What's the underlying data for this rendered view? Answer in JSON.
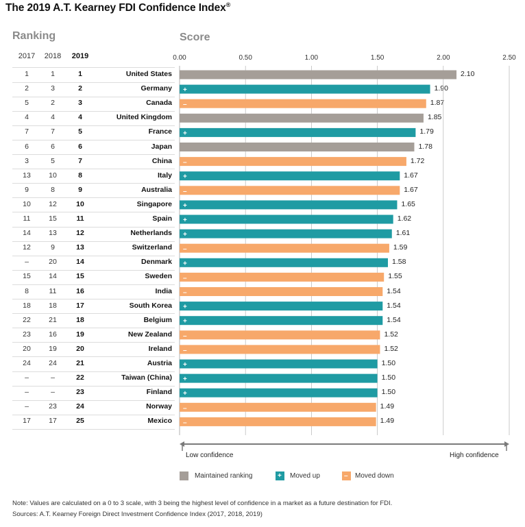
{
  "title": "The 2019 A.T. Kearney FDI Confidence Index",
  "title_mark": "®",
  "ranking_header": "Ranking",
  "score_header": "Score",
  "years": [
    "2017",
    "2018",
    "2019"
  ],
  "axis_ticks": [
    "0.00",
    "0.50",
    "1.00",
    "1.50",
    "2.00",
    "2.50"
  ],
  "low_label": "Low confidence",
  "high_label": "High confidence",
  "colors": {
    "maintained": "#a59e98",
    "up": "#1f9ba3",
    "down": "#f7a86a"
  },
  "legend": [
    {
      "key": "maintained",
      "label": "Maintained ranking",
      "symbol": ""
    },
    {
      "key": "up",
      "label": "Moved up",
      "symbol": "+"
    },
    {
      "key": "down",
      "label": "Moved down",
      "symbol": "–"
    }
  ],
  "rows": [
    {
      "r2017": "1",
      "r2018": "1",
      "r2019": "1",
      "country": "United States",
      "status": "maintained",
      "symbol": "",
      "label": "2.10"
    },
    {
      "r2017": "2",
      "r2018": "3",
      "r2019": "2",
      "country": "Germany",
      "status": "up",
      "symbol": "+",
      "label": "1.90"
    },
    {
      "r2017": "5",
      "r2018": "2",
      "r2019": "3",
      "country": "Canada",
      "status": "down",
      "symbol": "–",
      "label": "1.87"
    },
    {
      "r2017": "4",
      "r2018": "4",
      "r2019": "4",
      "country": "United Kingdom",
      "status": "maintained",
      "symbol": "",
      "label": "1.85"
    },
    {
      "r2017": "7",
      "r2018": "7",
      "r2019": "5",
      "country": "France",
      "status": "up",
      "symbol": "+",
      "label": "1.79"
    },
    {
      "r2017": "6",
      "r2018": "6",
      "r2019": "6",
      "country": "Japan",
      "status": "maintained",
      "symbol": "",
      "label": "1.78"
    },
    {
      "r2017": "3",
      "r2018": "5",
      "r2019": "7",
      "country": "China",
      "status": "down",
      "symbol": "–",
      "label": "1.72"
    },
    {
      "r2017": "13",
      "r2018": "10",
      "r2019": "8",
      "country": "Italy",
      "status": "up",
      "symbol": "+",
      "label": "1.67"
    },
    {
      "r2017": "9",
      "r2018": "8",
      "r2019": "9",
      "country": "Australia",
      "status": "down",
      "symbol": "–",
      "label": "1.67"
    },
    {
      "r2017": "10",
      "r2018": "12",
      "r2019": "10",
      "country": "Singapore",
      "status": "up",
      "symbol": "+",
      "label": "1.65"
    },
    {
      "r2017": "11",
      "r2018": "15",
      "r2019": "11",
      "country": "Spain",
      "status": "up",
      "symbol": "+",
      "label": "1.62"
    },
    {
      "r2017": "14",
      "r2018": "13",
      "r2019": "12",
      "country": "Netherlands",
      "status": "up",
      "symbol": "+",
      "label": "1.61"
    },
    {
      "r2017": "12",
      "r2018": "9",
      "r2019": "13",
      "country": "Switzerland",
      "status": "down",
      "symbol": "–",
      "label": "1.59"
    },
    {
      "r2017": "–",
      "r2018": "20",
      "r2019": "14",
      "country": "Denmark",
      "status": "up",
      "symbol": "+",
      "label": "1.58"
    },
    {
      "r2017": "15",
      "r2018": "14",
      "r2019": "15",
      "country": "Sweden",
      "status": "down",
      "symbol": "–",
      "label": "1.55"
    },
    {
      "r2017": "8",
      "r2018": "11",
      "r2019": "16",
      "country": "India",
      "status": "down",
      "symbol": "–",
      "label": "1.54"
    },
    {
      "r2017": "18",
      "r2018": "18",
      "r2019": "17",
      "country": "South Korea",
      "status": "up",
      "symbol": "+",
      "label": "1.54"
    },
    {
      "r2017": "22",
      "r2018": "21",
      "r2019": "18",
      "country": "Belgium",
      "status": "up",
      "symbol": "+",
      "label": "1.54"
    },
    {
      "r2017": "23",
      "r2018": "16",
      "r2019": "19",
      "country": "New Zealand",
      "status": "down",
      "symbol": "–",
      "label": "1.52"
    },
    {
      "r2017": "20",
      "r2018": "19",
      "r2019": "20",
      "country": "Ireland",
      "status": "down",
      "symbol": "–",
      "label": "1.52"
    },
    {
      "r2017": "24",
      "r2018": "24",
      "r2019": "21",
      "country": "Austria",
      "status": "up",
      "symbol": "+",
      "label": "1.50"
    },
    {
      "r2017": "–",
      "r2018": "–",
      "r2019": "22",
      "country": "Taiwan (China)",
      "status": "up",
      "symbol": "+",
      "label": "1.50"
    },
    {
      "r2017": "–",
      "r2018": "–",
      "r2019": "23",
      "country": "Finland",
      "status": "up",
      "symbol": "+",
      "label": "1.50"
    },
    {
      "r2017": "–",
      "r2018": "23",
      "r2019": "24",
      "country": "Norway",
      "status": "down",
      "symbol": "–",
      "label": "1.49"
    },
    {
      "r2017": "17",
      "r2018": "17",
      "r2019": "25",
      "country": "Mexico",
      "status": "down",
      "symbol": "–",
      "label": "1.49"
    }
  ],
  "note": "Note: Values are calculated on a 0 to 3 scale, with 3 being the highest level of confidence in a market as a future destination for FDI.",
  "sources": "Sources: A.T. Kearney Foreign Direct Investment Confidence Index (2017, 2018, 2019)",
  "chart_data": {
    "type": "bar",
    "orientation": "horizontal",
    "title": "The 2019 A.T. Kearney FDI Confidence Index",
    "xlabel": "Score",
    "xlim": [
      0,
      2.5
    ],
    "xticks": [
      0,
      0.5,
      1.0,
      1.5,
      2.0,
      2.5
    ],
    "grid": true,
    "legend_position": "bottom",
    "categories": [
      "United States",
      "Germany",
      "Canada",
      "United Kingdom",
      "France",
      "Japan",
      "China",
      "Italy",
      "Australia",
      "Singapore",
      "Spain",
      "Netherlands",
      "Switzerland",
      "Denmark",
      "Sweden",
      "India",
      "South Korea",
      "Belgium",
      "New Zealand",
      "Ireland",
      "Austria",
      "Taiwan (China)",
      "Finland",
      "Norway",
      "Mexico"
    ],
    "values": [
      2.1,
      1.9,
      1.87,
      1.85,
      1.79,
      1.78,
      1.72,
      1.67,
      1.67,
      1.65,
      1.62,
      1.61,
      1.59,
      1.58,
      1.55,
      1.54,
      1.54,
      1.54,
      1.52,
      1.52,
      1.5,
      1.5,
      1.5,
      1.49,
      1.49
    ],
    "series": [
      {
        "values": [
          2.1,
          1.9,
          1.87,
          1.85,
          1.79,
          1.78,
          1.72,
          1.67,
          1.67,
          1.65,
          1.62,
          1.61,
          1.59,
          1.58,
          1.55,
          1.54,
          1.54,
          1.54,
          1.52,
          1.52,
          1.5,
          1.5,
          1.5,
          1.49,
          1.49
        ]
      }
    ]
  }
}
